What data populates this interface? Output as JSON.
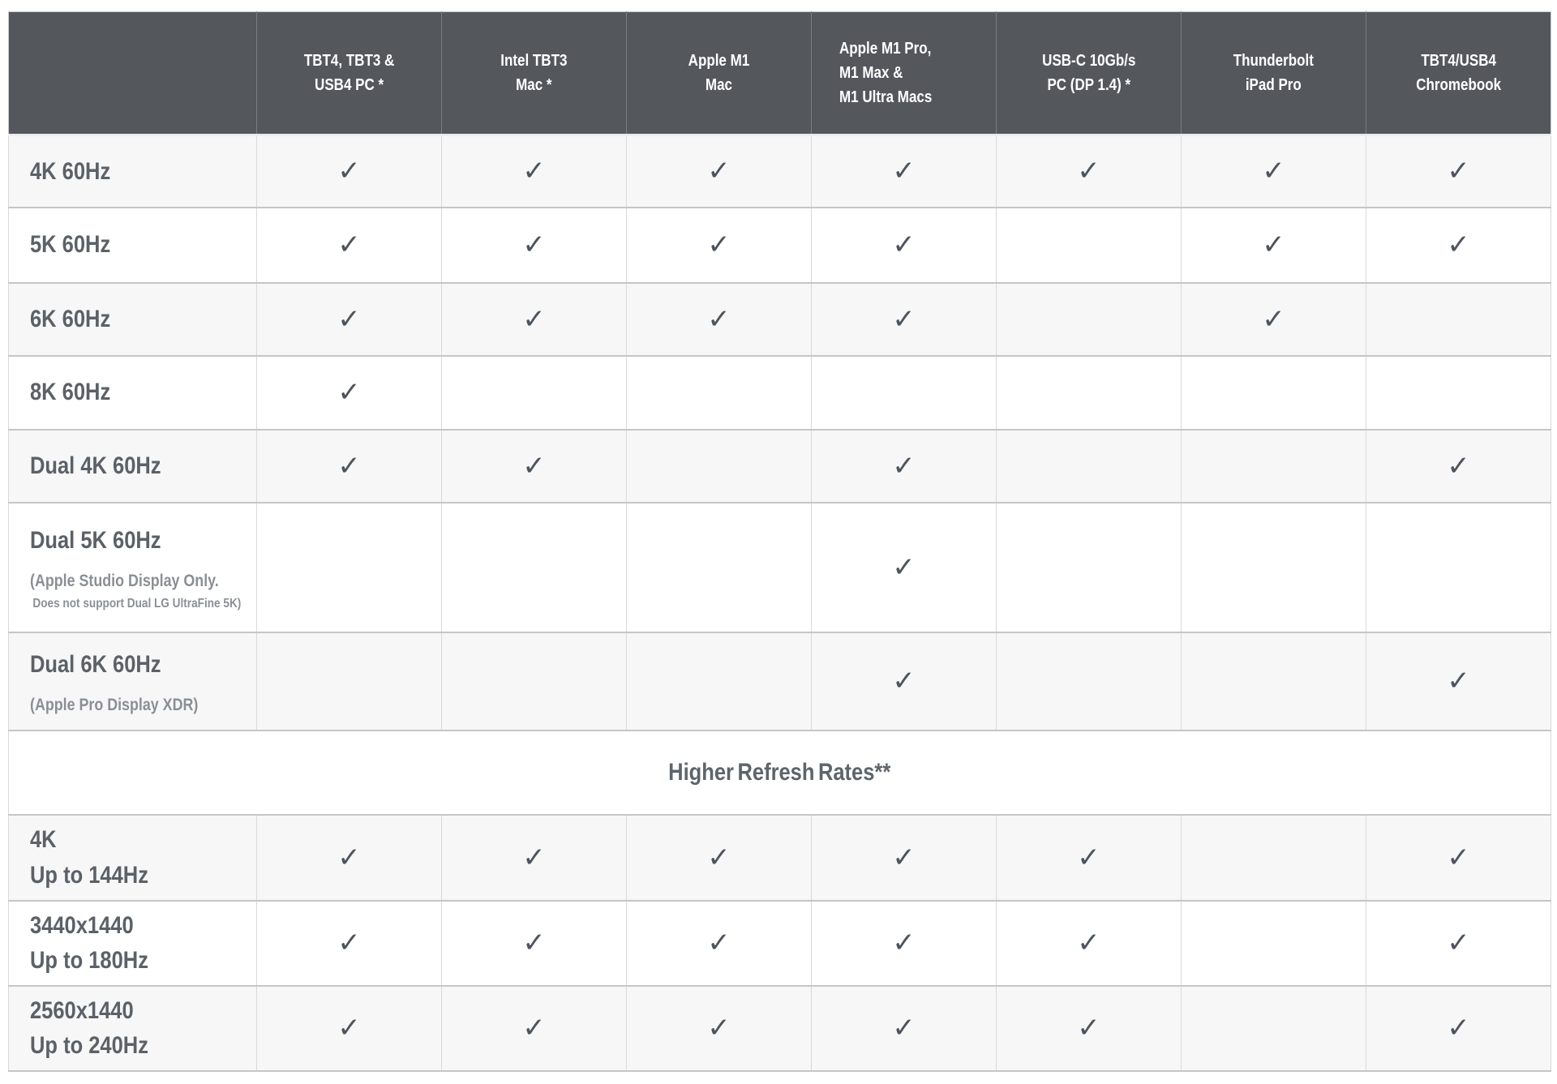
{
  "chart_data": {
    "type": "table",
    "description": "Display resolution / refresh-rate compatibility matrix by host device",
    "check_symbol": "✓",
    "colors": {
      "header_bg": "#54585d",
      "header_text": "#ffffff",
      "label_text": "#5b6167",
      "sub_text": "#8b8f94",
      "check": "#4d545c",
      "row_alt_bg": "#f7f7f8",
      "row_bg": "#ffffff",
      "grid_line": "#c6c6c6"
    },
    "column_headers": [
      {
        "lines": [
          "TBT4, TBT3 &",
          "USB4 PC *"
        ]
      },
      {
        "lines": [
          "Intel TBT3",
          "Mac *"
        ]
      },
      {
        "lines": [
          "Apple M1",
          "Mac"
        ]
      },
      {
        "lines": [
          "Apple M1 Pro,",
          "M1 Max &",
          "M1 Ultra Macs"
        ]
      },
      {
        "lines": [
          "USB-C 10Gb/s",
          "PC (DP 1.4) *"
        ]
      },
      {
        "lines": [
          "Thunderbolt",
          "iPad Pro"
        ]
      },
      {
        "lines": [
          "TBT4/USB4",
          "Chromebook"
        ]
      }
    ],
    "rows": [
      {
        "label": "4K 60Hz",
        "checks": [
          1,
          1,
          1,
          1,
          1,
          1,
          1
        ]
      },
      {
        "label": "5K 60Hz",
        "checks": [
          1,
          1,
          1,
          1,
          0,
          1,
          1
        ]
      },
      {
        "label": "6K 60Hz",
        "checks": [
          1,
          1,
          1,
          1,
          0,
          1,
          0
        ]
      },
      {
        "label": "8K 60Hz",
        "checks": [
          1,
          0,
          0,
          0,
          0,
          0,
          0
        ]
      },
      {
        "label": "Dual 4K 60Hz",
        "checks": [
          1,
          1,
          0,
          1,
          0,
          0,
          1
        ]
      },
      {
        "label": "Dual 5K 60Hz",
        "sub1": "(Apple Studio Display Only.",
        "sub2": "Does not support Dual LG UltraFine 5K)",
        "checks": [
          0,
          0,
          0,
          1,
          0,
          0,
          0
        ]
      },
      {
        "label": "Dual 6K 60Hz",
        "sub1": "(Apple Pro Display XDR)",
        "checks": [
          0,
          0,
          0,
          1,
          0,
          0,
          1
        ]
      }
    ],
    "section_header": "Higher Refresh Rates**",
    "refresh_rows": [
      {
        "label": "4K",
        "label2": "Up to 144Hz",
        "checks": [
          1,
          1,
          1,
          1,
          1,
          0,
          1
        ]
      },
      {
        "label": "3440x1440",
        "label2": "Up to 180Hz",
        "checks": [
          1,
          1,
          1,
          1,
          1,
          0,
          1
        ]
      },
      {
        "label": "2560x1440",
        "label2": "Up to 240Hz",
        "checks": [
          1,
          1,
          1,
          1,
          1,
          0,
          1
        ]
      }
    ]
  }
}
